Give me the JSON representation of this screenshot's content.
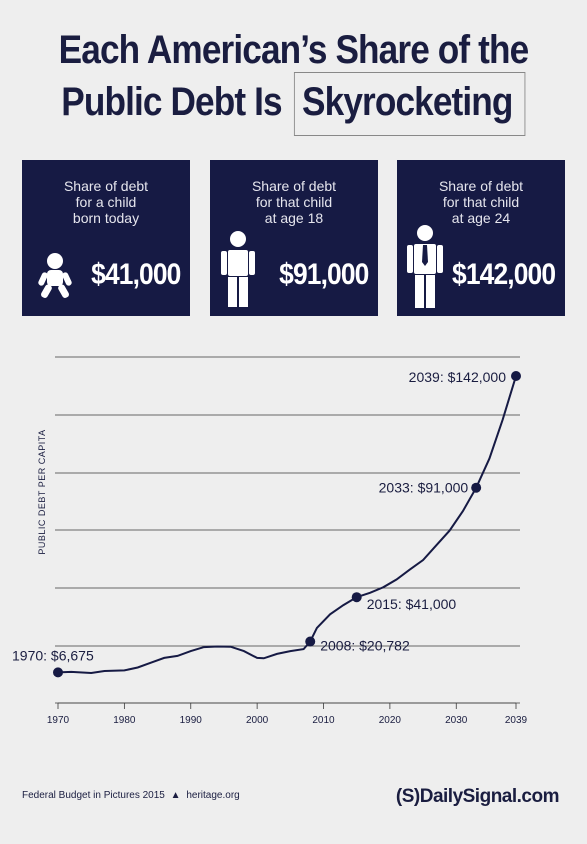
{
  "title": {
    "line1": "Each American’s Share of the",
    "line2_prefix": "Public Debt Is",
    "line2_highlight": "Skyrocketing"
  },
  "panels": [
    {
      "caption": [
        "Share of debt",
        "for a child",
        "born today"
      ],
      "value": "$41,000",
      "icon": "baby-icon"
    },
    {
      "caption": [
        "Share of debt",
        "for that child",
        "at age 18"
      ],
      "value": "$91,000",
      "icon": "teen-icon"
    },
    {
      "caption": [
        "Share of debt",
        "for that child",
        "at age 24"
      ],
      "value": "$142,000",
      "icon": "adult-tie-icon"
    }
  ],
  "chart_data": {
    "type": "line",
    "ylabel": "PUBLIC DEBT PER CAPITA",
    "xlabel": "",
    "x_ticks": [
      1970,
      1980,
      1990,
      2000,
      2010,
      2020,
      2030,
      2039
    ],
    "xlim": [
      1970,
      2039
    ],
    "ylim": [
      0,
      142000
    ],
    "grid": "horizontal",
    "series": [
      {
        "x": [
          1970,
          1972,
          1975,
          1977,
          1980,
          1982,
          1984,
          1986,
          1988,
          1990,
          1992,
          1994,
          1996,
          1998,
          2000,
          2001,
          2003,
          2005,
          2007,
          2008,
          2009,
          2011,
          2013,
          2015,
          2017,
          2019,
          2021,
          2023,
          2025,
          2027,
          2029,
          2031,
          2033,
          2035,
          2037,
          2039
        ],
        "y": [
          6675,
          6900,
          6400,
          7300,
          7600,
          8900,
          11100,
          13300,
          14200,
          16400,
          18200,
          18500,
          18400,
          16400,
          13300,
          13100,
          15100,
          16400,
          17300,
          20782,
          27000,
          33200,
          37400,
          41000,
          43000,
          45500,
          49100,
          53600,
          58000,
          64700,
          71400,
          80300,
          91000,
          104300,
          122100,
          142000
        ]
      }
    ],
    "annotations": [
      {
        "x": 1970,
        "y": 6675,
        "label": "1970: $6,675"
      },
      {
        "x": 2008,
        "y": 20782,
        "label": "2008: $20,782"
      },
      {
        "x": 2015,
        "y": 41000,
        "label": "2015: $41,000"
      },
      {
        "x": 2033,
        "y": 91000,
        "label": "2033: $91,000"
      },
      {
        "x": 2039,
        "y": 142000,
        "label": "2039: $142,000"
      }
    ]
  },
  "footer": {
    "source": "Federal Budget in Pictures 2015",
    "site": "heritage.org",
    "brand": "(S)DailySignal.com"
  },
  "colors": {
    "navy": "#161a44",
    "background": "#eeeeee",
    "grid": "#333333"
  }
}
